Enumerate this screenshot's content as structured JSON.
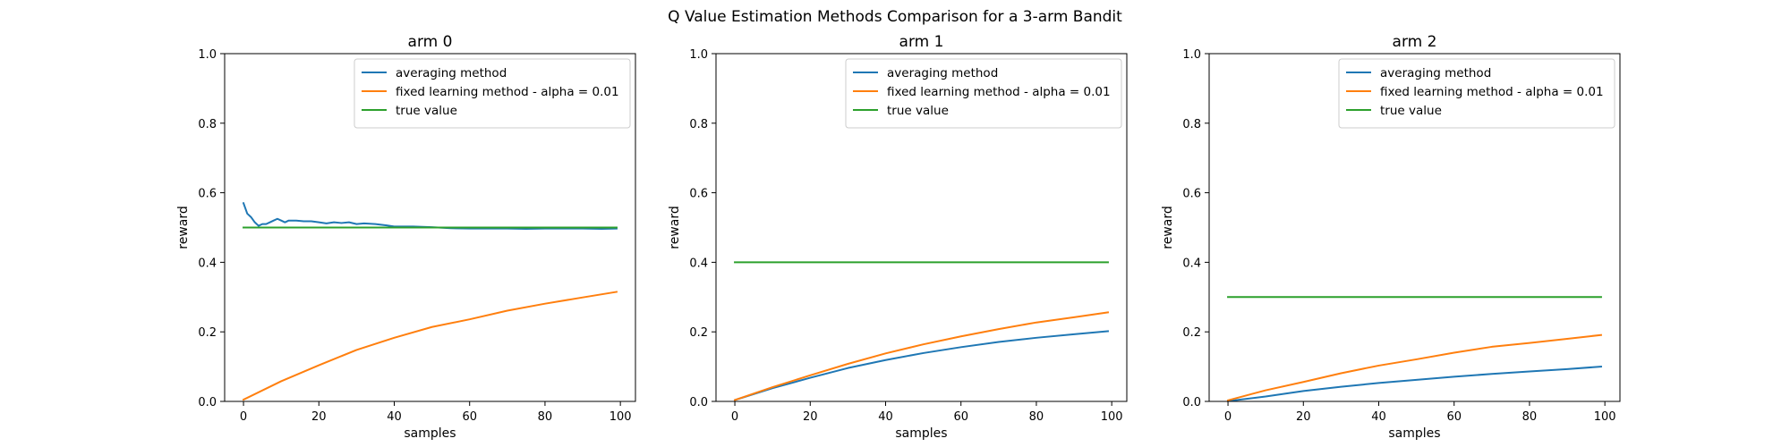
{
  "figure": {
    "suptitle": "Q Value Estimation Methods Comparison for a 3-arm Bandit"
  },
  "colors": {
    "averaging": "#1f77b4",
    "fixed": "#ff7f0e",
    "true_value": "#2ca02c"
  },
  "chart_data": [
    {
      "type": "line",
      "title": "arm 0",
      "xlabel": "samples",
      "ylabel": "reward",
      "xlim": [
        -5,
        104
      ],
      "ylim": [
        0,
        1
      ],
      "xticks": [
        0,
        20,
        40,
        60,
        80,
        100
      ],
      "yticks": [
        0.0,
        0.2,
        0.4,
        0.6,
        0.8,
        1.0
      ],
      "xtick_labels": [
        "0",
        "20",
        "40",
        "60",
        "80",
        "100"
      ],
      "ytick_labels": [
        "0.0",
        "0.2",
        "0.4",
        "0.6",
        "0.8",
        "1.0"
      ],
      "legend_position": "top-right",
      "series": [
        {
          "name": "averaging method",
          "color_key": "averaging",
          "points": [
            [
              0,
              0.57
            ],
            [
              1,
              0.54
            ],
            [
              2,
              0.53
            ],
            [
              3,
              0.515
            ],
            [
              4,
              0.505
            ],
            [
              5,
              0.51
            ],
            [
              6,
              0.51
            ],
            [
              7,
              0.515
            ],
            [
              8,
              0.52
            ],
            [
              9,
              0.525
            ],
            [
              10,
              0.52
            ],
            [
              11,
              0.515
            ],
            [
              12,
              0.52
            ],
            [
              14,
              0.52
            ],
            [
              16,
              0.518
            ],
            [
              18,
              0.518
            ],
            [
              20,
              0.515
            ],
            [
              22,
              0.512
            ],
            [
              24,
              0.515
            ],
            [
              26,
              0.513
            ],
            [
              28,
              0.515
            ],
            [
              30,
              0.51
            ],
            [
              32,
              0.512
            ],
            [
              35,
              0.51
            ],
            [
              38,
              0.506
            ],
            [
              40,
              0.503
            ],
            [
              45,
              0.503
            ],
            [
              50,
              0.501
            ],
            [
              55,
              0.498
            ],
            [
              60,
              0.497
            ],
            [
              65,
              0.497
            ],
            [
              70,
              0.497
            ],
            [
              75,
              0.496
            ],
            [
              80,
              0.497
            ],
            [
              85,
              0.497
            ],
            [
              90,
              0.497
            ],
            [
              95,
              0.496
            ],
            [
              99,
              0.497
            ]
          ]
        },
        {
          "name": "fixed learning method - alpha = 0.01",
          "color_key": "fixed",
          "points": [
            [
              0,
              0.005
            ],
            [
              10,
              0.058
            ],
            [
              20,
              0.104
            ],
            [
              30,
              0.148
            ],
            [
              40,
              0.183
            ],
            [
              50,
              0.214
            ],
            [
              60,
              0.236
            ],
            [
              70,
              0.261
            ],
            [
              80,
              0.281
            ],
            [
              90,
              0.299
            ],
            [
              99,
              0.315
            ]
          ]
        },
        {
          "name": "true value",
          "color_key": "true_value",
          "points": [
            [
              0,
              0.5
            ],
            [
              99,
              0.5
            ]
          ]
        }
      ]
    },
    {
      "type": "line",
      "title": "arm 1",
      "xlabel": "samples",
      "ylabel": "reward",
      "xlim": [
        -5,
        104
      ],
      "ylim": [
        0,
        1
      ],
      "xticks": [
        0,
        20,
        40,
        60,
        80,
        100
      ],
      "yticks": [
        0.0,
        0.2,
        0.4,
        0.6,
        0.8,
        1.0
      ],
      "xtick_labels": [
        "0",
        "20",
        "40",
        "60",
        "80",
        "100"
      ],
      "ytick_labels": [
        "0.0",
        "0.2",
        "0.4",
        "0.6",
        "0.8",
        "1.0"
      ],
      "legend_position": "top-right",
      "series": [
        {
          "name": "averaging method",
          "color_key": "averaging",
          "points": [
            [
              0,
              0.004
            ],
            [
              10,
              0.038
            ],
            [
              20,
              0.068
            ],
            [
              30,
              0.096
            ],
            [
              40,
              0.119
            ],
            [
              50,
              0.139
            ],
            [
              60,
              0.156
            ],
            [
              70,
              0.171
            ],
            [
              80,
              0.183
            ],
            [
              90,
              0.193
            ],
            [
              99,
              0.202
            ]
          ]
        },
        {
          "name": "fixed learning method - alpha = 0.01",
          "color_key": "fixed",
          "points": [
            [
              0,
              0.004
            ],
            [
              10,
              0.041
            ],
            [
              20,
              0.075
            ],
            [
              30,
              0.108
            ],
            [
              40,
              0.138
            ],
            [
              50,
              0.164
            ],
            [
              60,
              0.187
            ],
            [
              70,
              0.208
            ],
            [
              80,
              0.227
            ],
            [
              90,
              0.242
            ],
            [
              99,
              0.256
            ]
          ]
        },
        {
          "name": "true value",
          "color_key": "true_value",
          "points": [
            [
              0,
              0.4
            ],
            [
              99,
              0.4
            ]
          ]
        }
      ]
    },
    {
      "type": "line",
      "title": "arm 2",
      "xlabel": "samples",
      "ylabel": "reward",
      "xlim": [
        -5,
        104
      ],
      "ylim": [
        0,
        1
      ],
      "xticks": [
        0,
        20,
        40,
        60,
        80,
        100
      ],
      "yticks": [
        0.0,
        0.2,
        0.4,
        0.6,
        0.8,
        1.0
      ],
      "xtick_labels": [
        "0",
        "20",
        "40",
        "60",
        "80",
        "100"
      ],
      "ytick_labels": [
        "0.0",
        "0.2",
        "0.4",
        "0.6",
        "0.8",
        "1.0"
      ],
      "legend_position": "top-right",
      "series": [
        {
          "name": "averaging method",
          "color_key": "averaging",
          "points": [
            [
              0,
              0.001
            ],
            [
              10,
              0.014
            ],
            [
              20,
              0.03
            ],
            [
              30,
              0.042
            ],
            [
              40,
              0.053
            ],
            [
              50,
              0.062
            ],
            [
              60,
              0.071
            ],
            [
              70,
              0.079
            ],
            [
              80,
              0.086
            ],
            [
              90,
              0.093
            ],
            [
              99,
              0.1
            ]
          ]
        },
        {
          "name": "fixed learning method - alpha = 0.01",
          "color_key": "fixed",
          "points": [
            [
              0,
              0.003
            ],
            [
              10,
              0.032
            ],
            [
              20,
              0.056
            ],
            [
              30,
              0.081
            ],
            [
              40,
              0.103
            ],
            [
              50,
              0.121
            ],
            [
              60,
              0.14
            ],
            [
              70,
              0.157
            ],
            [
              80,
              0.168
            ],
            [
              90,
              0.18
            ],
            [
              99,
              0.191
            ]
          ]
        },
        {
          "name": "true value",
          "color_key": "true_value",
          "points": [
            [
              0,
              0.3
            ],
            [
              99,
              0.3
            ]
          ]
        }
      ]
    }
  ]
}
